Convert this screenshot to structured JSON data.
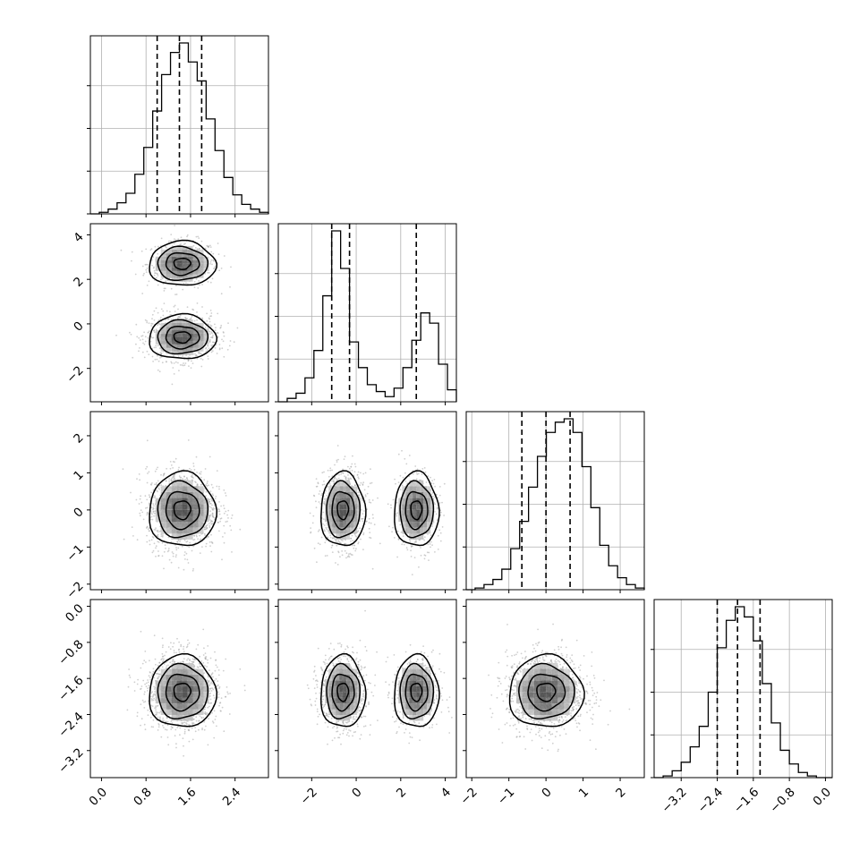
{
  "chart_data": {
    "type": "corner",
    "title": "",
    "parameters": [
      {
        "range": [
          -0.2,
          3.0
        ],
        "ticks": [
          0.0,
          0.8,
          1.6,
          2.4
        ],
        "tick_labels": [
          "0.0",
          "0.8",
          "1.6",
          "2.4"
        ],
        "quantiles": [
          1.0,
          1.4,
          1.8
        ]
      },
      {
        "range": [
          -3.5,
          4.5
        ],
        "ticks": [
          -2,
          0,
          2,
          4
        ],
        "tick_labels": [
          "−2",
          "0",
          "2",
          "4"
        ],
        "quantiles": [
          -1.1,
          -0.3,
          2.7
        ]
      },
      {
        "range": [
          -2.15,
          2.65
        ],
        "ticks": [
          -2,
          -1,
          0,
          1,
          2
        ],
        "tick_labels": [
          "−2",
          "−1",
          "0",
          "1",
          "2"
        ],
        "quantiles": [
          -0.65,
          0.0,
          0.65
        ]
      },
      {
        "range": [
          -3.8,
          0.15
        ],
        "ticks": [
          -3.2,
          -2.4,
          -1.6,
          -0.8,
          0.0
        ],
        "tick_labels": [
          "−3.2",
          "−2.4",
          "−1.6",
          "−0.8",
          "0.0"
        ],
        "quantiles": [
          -2.4,
          -1.95,
          -1.45
        ]
      }
    ],
    "histograms": [
      {
        "edges_from": -0.2,
        "bin_width": 0.16,
        "counts": [
          0,
          1,
          3,
          7,
          13,
          25,
          42,
          65,
          88,
          102,
          108,
          96,
          84,
          60,
          40,
          23,
          12,
          6,
          3,
          1,
          0
        ]
      },
      {
        "edges_from": -3.5,
        "bin_width": 0.4,
        "counts": [
          0,
          2,
          5,
          14,
          30,
          62,
          100,
          78,
          35,
          20,
          10,
          6,
          3,
          8,
          20,
          36,
          52,
          46,
          22,
          7,
          2,
          0
        ]
      },
      {
        "edges_from": -2.15,
        "bin_width": 0.24,
        "counts": [
          0,
          1,
          3,
          6,
          12,
          24,
          40,
          60,
          78,
          92,
          98,
          100,
          92,
          72,
          48,
          26,
          14,
          7,
          3,
          1,
          0
        ]
      },
      {
        "edges_from": -3.8,
        "bin_width": 0.2,
        "counts": [
          0,
          1,
          4,
          9,
          18,
          30,
          50,
          76,
          92,
          100,
          94,
          80,
          55,
          32,
          16,
          8,
          3,
          1,
          0,
          0
        ]
      }
    ],
    "pair_clusters": [
      {
        "row": 1,
        "col": 0,
        "clusters": [
          {
            "cx": 1.45,
            "cy": 2.7,
            "sx": 0.3,
            "sy": 0.5,
            "w": 0.35
          },
          {
            "cx": 1.45,
            "cy": -0.6,
            "sx": 0.3,
            "sy": 0.5,
            "w": 0.65
          }
        ]
      },
      {
        "row": 2,
        "col": 0,
        "clusters": [
          {
            "cx": 1.45,
            "cy": 0.0,
            "sx": 0.3,
            "sy": 0.5,
            "w": 1.0
          }
        ]
      },
      {
        "row": 2,
        "col": 1,
        "clusters": [
          {
            "cx": -0.6,
            "cy": 0.0,
            "sx": 0.5,
            "sy": 0.5,
            "w": 0.65
          },
          {
            "cx": 2.7,
            "cy": 0.0,
            "sx": 0.5,
            "sy": 0.5,
            "w": 0.35
          }
        ]
      },
      {
        "row": 3,
        "col": 0,
        "clusters": [
          {
            "cx": 1.45,
            "cy": -1.9,
            "sx": 0.3,
            "sy": 0.4,
            "w": 1.0
          }
        ]
      },
      {
        "row": 3,
        "col": 1,
        "clusters": [
          {
            "cx": -0.6,
            "cy": -1.9,
            "sx": 0.5,
            "sy": 0.4,
            "w": 0.65
          },
          {
            "cx": 2.7,
            "cy": -1.9,
            "sx": 0.5,
            "sy": 0.4,
            "w": 0.35
          }
        ]
      },
      {
        "row": 3,
        "col": 2,
        "clusters": [
          {
            "cx": 0.0,
            "cy": -1.9,
            "sx": 0.5,
            "sy": 0.4,
            "w": 1.0
          }
        ]
      }
    ],
    "contour_sigmas": [
      0.5,
      1.0,
      1.5,
      2.0
    ],
    "grid": true,
    "colors": {
      "line": "#000000",
      "grid": "#b0b0b0",
      "points": "#a8a8a8",
      "density_dark": "#333333"
    }
  }
}
